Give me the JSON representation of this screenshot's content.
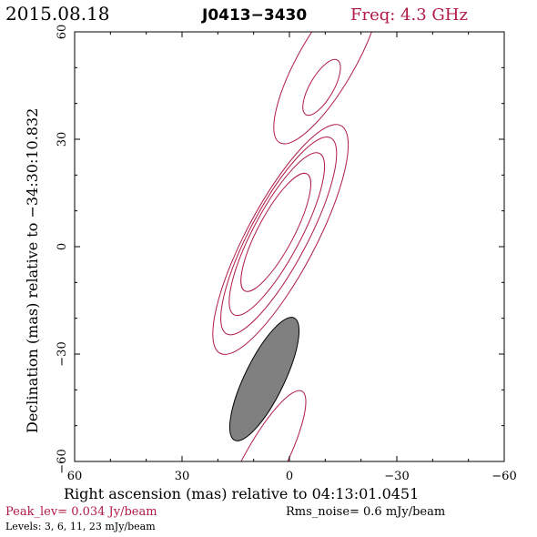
{
  "header": {
    "date": "2015.08.18",
    "source": "J0413−3430",
    "frequency": "Freq: 4.3 GHz"
  },
  "footer": {
    "peak": "Peak_lev=  0.034 Jy/beam",
    "rms": "Rms_noise=  0.6 mJy/beam",
    "levels": "Levels:  3,  6,  11,  23 mJy/beam"
  },
  "colors": {
    "contour": "#b01a45",
    "beam_fill": "#808080",
    "axes": "#000000"
  },
  "chart_data": {
    "type": "contour",
    "title": "J0413−3430",
    "xlabel": "Right ascension (mas) relative to 04:13:01.0451",
    "ylabel": "Declination (mas) relative to −34:30:10.832",
    "xlim": [
      60,
      -60
    ],
    "ylim": [
      -60,
      60
    ],
    "x_ticks": [
      60,
      30,
      0,
      -30,
      -60
    ],
    "y_ticks": [
      -60,
      -30,
      0,
      30,
      60
    ],
    "x_tick_labels": [
      "60",
      "30",
      "0",
      "−30",
      "−60"
    ],
    "y_tick_labels": [
      "−60",
      "−30",
      "0",
      "30",
      "60"
    ],
    "peak_jy_per_beam": 0.034,
    "rms_noise_mjy_per_beam": 0.6,
    "levels_mjy_per_beam": [
      3,
      6,
      11,
      23
    ],
    "contours": [
      {
        "component": "core",
        "level_mjy": 3,
        "center": [
          2.5,
          2.0
        ],
        "semi_major": 36.0,
        "semi_minor": 9.6,
        "pa_deg": 28
      },
      {
        "component": "core",
        "level_mjy": 6,
        "center": [
          3.0,
          3.0
        ],
        "semi_major": 31.0,
        "semi_minor": 8.0,
        "pa_deg": 28
      },
      {
        "component": "core",
        "level_mjy": 11,
        "center": [
          3.5,
          3.5
        ],
        "semi_major": 25.5,
        "semi_minor": 6.6,
        "pa_deg": 28
      },
      {
        "component": "core",
        "level_mjy": 23,
        "center": [
          3.8,
          4.0
        ],
        "semi_major": 18.5,
        "semi_minor": 5.0,
        "pa_deg": 28
      },
      {
        "component": "jet",
        "level_mjy": 3,
        "center": [
          -10.5,
          52.0
        ],
        "semi_major": 26.5,
        "semi_minor": 7.8,
        "pa_deg": 30
      },
      {
        "component": "jet",
        "level_mjy": 6,
        "center": [
          -9.0,
          44.5
        ],
        "semi_major": 8.8,
        "semi_minor": 3.3,
        "pa_deg": 30
      },
      {
        "component": "counter",
        "level_mjy": 3,
        "center": [
          8.0,
          -62.0
        ],
        "semi_major": 24.5,
        "semi_minor": 5.8,
        "pa_deg": 28
      }
    ],
    "beam": {
      "center": [
        7.0,
        -37.0
      ],
      "major_mas": 38.0,
      "minor_mas": 11.0,
      "pa_deg": 26
    }
  }
}
